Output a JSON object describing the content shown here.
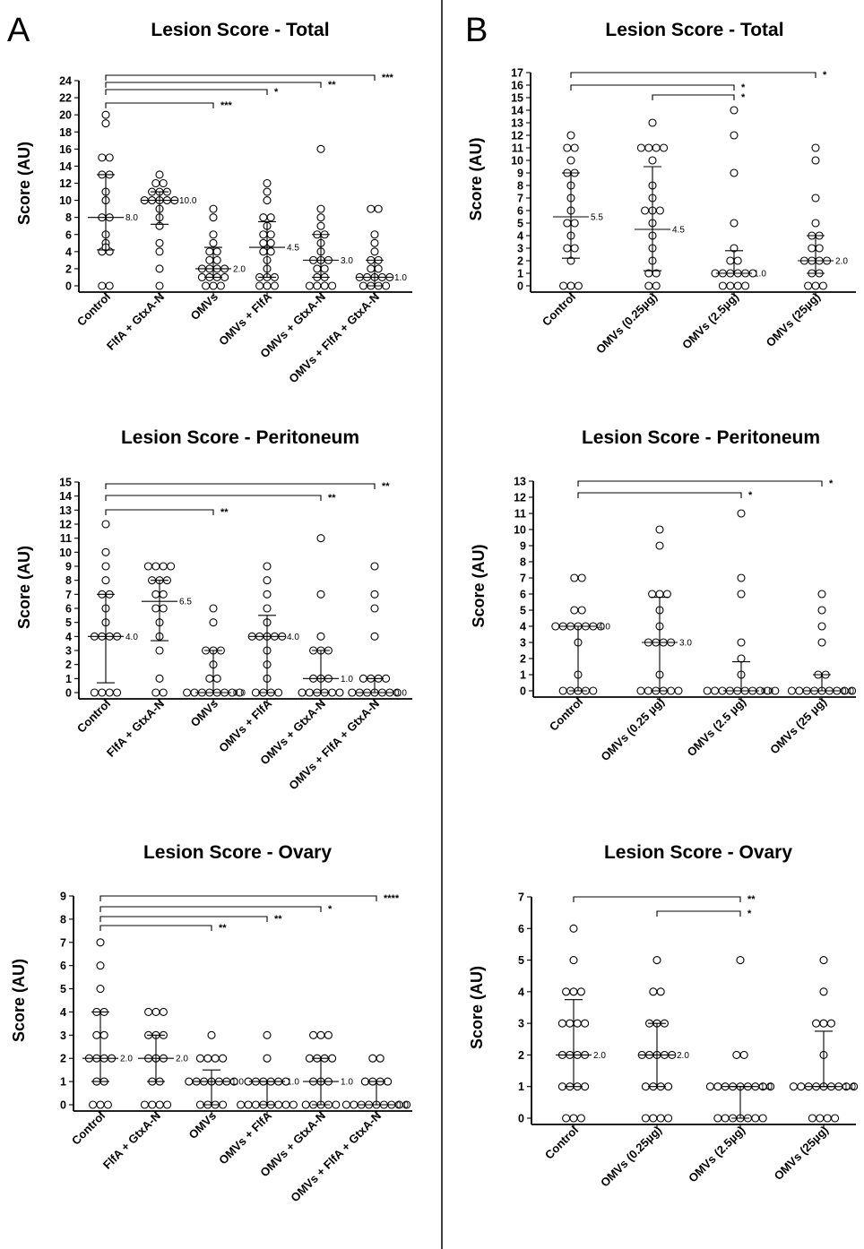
{
  "panels": [
    {
      "letter": "A",
      "divider": "panel-divider"
    },
    {
      "letter": "B"
    }
  ],
  "chart_data": [
    {
      "panel": "A",
      "type": "scatter",
      "title": "Lesion Score - Total",
      "ylabel": "Score (AU)",
      "ylim": [
        0,
        24
      ],
      "yticks": [
        0,
        2,
        4,
        6,
        8,
        10,
        12,
        14,
        16,
        18,
        20,
        22,
        24
      ],
      "categories": [
        "Control",
        "FlfA + GtxA-N",
        "OMVs",
        "OMVs + FlfA",
        "OMVs + GtxA-N",
        "OMVs + FlfA + GtxA-N"
      ],
      "groups": [
        {
          "values": [
            20,
            19,
            15,
            15,
            13,
            13,
            11,
            10,
            8,
            8,
            6,
            5,
            4.5,
            4,
            4,
            0,
            0
          ],
          "median": 8.0,
          "median_label": "8.0",
          "q1": 4.2,
          "q3": 13
        },
        {
          "values": [
            13,
            12,
            12,
            11,
            11,
            11,
            10,
            10,
            10,
            10,
            10,
            9,
            8,
            7,
            5,
            4,
            2,
            0
          ],
          "median": 10.0,
          "median_label": "10.0",
          "q1": 7.2,
          "q3": 11
        },
        {
          "values": [
            9,
            8,
            6,
            5,
            4,
            4,
            3,
            3,
            2,
            2,
            2,
            2,
            1,
            1,
            1,
            1,
            0,
            0,
            0
          ],
          "median": 2.0,
          "median_label": "2.0",
          "q1": 1,
          "q3": 4.5
        },
        {
          "values": [
            12,
            11,
            10,
            8,
            8,
            7,
            6,
            6,
            5,
            5,
            4,
            4,
            3,
            2,
            1,
            1,
            1,
            0,
            0,
            0
          ],
          "median": 4.5,
          "median_label": "4.5",
          "q1": 1,
          "q3": 7.5
        },
        {
          "values": [
            16,
            9,
            8,
            7,
            6,
            6,
            5,
            4,
            3,
            3,
            3,
            2,
            2,
            1,
            1,
            0,
            0,
            0,
            0
          ],
          "median": 3.0,
          "median_label": "3.0",
          "q1": 1,
          "q3": 6
        },
        {
          "values": [
            9,
            9,
            6,
            5,
            4,
            3,
            3,
            2,
            2,
            1,
            1,
            1,
            1,
            1,
            0,
            0,
            0,
            0
          ],
          "median": 1.0,
          "median_label": "1.0",
          "q1": 0,
          "q3": 3
        }
      ],
      "comparisons": [
        {
          "from": 0,
          "to": 2,
          "label": "***"
        },
        {
          "from": 0,
          "to": 3,
          "label": "*"
        },
        {
          "from": 0,
          "to": 4,
          "label": "**"
        },
        {
          "from": 0,
          "to": 5,
          "label": "***"
        }
      ]
    },
    {
      "panel": "A",
      "type": "scatter",
      "title": "Lesion Score - Peritoneum",
      "ylabel": "Score (AU)",
      "ylim": [
        0,
        15
      ],
      "yticks": [
        0,
        1,
        2,
        3,
        4,
        5,
        6,
        7,
        8,
        9,
        10,
        11,
        12,
        13,
        14,
        15
      ],
      "categories": [
        "Control",
        "FlfA + GtxA-N",
        "OMVs",
        "OMVs + FlfA",
        "OMVs + GtxA-N",
        "OMVs + FlfA + GtxA-N"
      ],
      "groups": [
        {
          "values": [
            12,
            10,
            9,
            8,
            7,
            7,
            6,
            5,
            4,
            4,
            4,
            4,
            0,
            0,
            0,
            0
          ],
          "median": 4.0,
          "median_label": "4.0",
          "q1": 0.7,
          "q3": 7
        },
        {
          "values": [
            9,
            9,
            9,
            9,
            8,
            8,
            8,
            7,
            7,
            6,
            6,
            5,
            4,
            3,
            1,
            0,
            0
          ],
          "median": 6.5,
          "median_label": "6.5",
          "q1": 3.7,
          "q3": 8
        },
        {
          "values": [
            6,
            5,
            3,
            3,
            3,
            2,
            1,
            1,
            0,
            0,
            0,
            0,
            0,
            0,
            0,
            0
          ],
          "median": 0.0,
          "median_label": "0.0",
          "q1": 0,
          "q3": 3
        },
        {
          "values": [
            9,
            8,
            7,
            6,
            5,
            4,
            4,
            4,
            4,
            4,
            3,
            2,
            1,
            0,
            0,
            0,
            0
          ],
          "median": 4.0,
          "median_label": "4.0",
          "q1": 0,
          "q3": 5.5
        },
        {
          "values": [
            11,
            7,
            4,
            3,
            3,
            3,
            1,
            1,
            1,
            0,
            0,
            0,
            0,
            0,
            0
          ],
          "median": 1.0,
          "median_label": "1.0",
          "q1": 0,
          "q3": 3
        },
        {
          "values": [
            9,
            7,
            6,
            4,
            1,
            1,
            1,
            1,
            0,
            0,
            0,
            0,
            0,
            0,
            0
          ],
          "median": 0.0,
          "median_label": "0.0",
          "q1": 0,
          "q3": 1
        }
      ],
      "comparisons": [
        {
          "from": 0,
          "to": 2,
          "label": "**"
        },
        {
          "from": 0,
          "to": 4,
          "label": "**"
        },
        {
          "from": 0,
          "to": 5,
          "label": "**"
        }
      ]
    },
    {
      "panel": "A",
      "type": "scatter",
      "title": "Lesion Score - Ovary",
      "ylabel": "Score (AU)",
      "ylim": [
        0,
        9
      ],
      "yticks": [
        0,
        1,
        2,
        3,
        4,
        5,
        6,
        7,
        8,
        9
      ],
      "categories": [
        "Control",
        "FlfA + GtxA-N",
        "OMVs",
        "OMVs + FlfA",
        "OMVs + GtxA-N",
        "OMVs + FlfA + GtxA-N"
      ],
      "groups": [
        {
          "values": [
            7,
            6,
            5,
            4,
            4,
            3,
            3,
            2,
            2,
            2,
            2,
            1,
            1,
            0,
            0,
            0
          ],
          "median": 2.0,
          "median_label": "2.0",
          "q1": 1,
          "q3": 4
        },
        {
          "values": [
            4,
            4,
            4,
            3,
            3,
            3,
            2,
            2,
            2,
            1,
            1,
            0,
            0,
            0,
            0
          ],
          "median": 2.0,
          "median_label": "2.0",
          "q1": 1,
          "q3": 3
        },
        {
          "values": [
            3,
            2,
            2,
            2,
            2,
            1,
            1,
            1,
            1,
            1,
            1,
            1,
            0,
            0,
            0,
            0
          ],
          "median": 1.0,
          "median_label": "1.0",
          "q1": 0,
          "q3": 1.5
        },
        {
          "values": [
            3,
            2,
            1,
            1,
            1,
            1,
            1,
            1,
            0,
            0,
            0,
            0,
            0,
            0,
            0,
            0
          ],
          "median": 1.0,
          "median_label": "1.0",
          "q1": 0,
          "q3": 1
        },
        {
          "values": [
            3,
            3,
            3,
            2,
            2,
            2,
            2,
            1,
            1,
            1,
            0,
            0,
            0,
            0,
            0
          ],
          "median": 1.0,
          "median_label": "1.0",
          "q1": 0,
          "q3": 2
        },
        {
          "values": [
            2,
            2,
            1,
            1,
            1,
            1,
            0,
            0,
            0,
            0,
            0,
            0,
            0,
            0,
            0
          ],
          "median": 0.0,
          "median_label": "0.0",
          "q1": 0,
          "q3": 1
        }
      ],
      "comparisons": [
        {
          "from": 0,
          "to": 2,
          "label": "**"
        },
        {
          "from": 0,
          "to": 3,
          "label": "**"
        },
        {
          "from": 0,
          "to": 4,
          "label": "*"
        },
        {
          "from": 0,
          "to": 5,
          "label": "****"
        }
      ]
    },
    {
      "panel": "B",
      "type": "scatter",
      "title": "Lesion Score - Total",
      "ylabel": "Score (AU)",
      "ylim": [
        0,
        17
      ],
      "yticks": [
        0,
        1,
        2,
        3,
        4,
        5,
        6,
        7,
        8,
        9,
        10,
        11,
        12,
        13,
        14,
        15,
        16,
        17
      ],
      "categories": [
        "Control",
        "OMVs (0.25µg)",
        "OMVs (2.5µg)",
        "OMVs (25µg)"
      ],
      "groups": [
        {
          "values": [
            12,
            11,
            11,
            10,
            9,
            9,
            8,
            7,
            6,
            5,
            5,
            4,
            3,
            3,
            2,
            0,
            0,
            0
          ],
          "median": 5.5,
          "median_label": "5.5",
          "q1": 2.2,
          "q3": 9
        },
        {
          "values": [
            13,
            11,
            11,
            11,
            11,
            10,
            8,
            7,
            6,
            6,
            6,
            5,
            4,
            3,
            2,
            1,
            1,
            0,
            0
          ],
          "median": 4.5,
          "median_label": "4.5",
          "q1": 1.2,
          "q3": 9.5
        },
        {
          "values": [
            14,
            12,
            9,
            5,
            3,
            2,
            2,
            1,
            1,
            1,
            1,
            1,
            1,
            0,
            0,
            0,
            0
          ],
          "median": 1.0,
          "median_label": "1.0",
          "q1": 1,
          "q3": 2.8
        },
        {
          "values": [
            11,
            10,
            7,
            5,
            4,
            4,
            3,
            3,
            2,
            2,
            2,
            2,
            1,
            1,
            0,
            0,
            0
          ],
          "median": 2.0,
          "median_label": "2.0",
          "q1": 1,
          "q3": 4
        }
      ],
      "comparisons": [
        {
          "from": 1,
          "to": 2,
          "label": "*"
        },
        {
          "from": 0,
          "to": 2,
          "label": "*"
        },
        {
          "from": 0,
          "to": 3,
          "label": "*"
        }
      ]
    },
    {
      "panel": "B",
      "type": "scatter",
      "title": "Lesion Score - Peritoneum",
      "ylabel": "Score (AU)",
      "ylim": [
        0,
        13
      ],
      "yticks": [
        0,
        1,
        2,
        3,
        4,
        5,
        6,
        7,
        8,
        9,
        10,
        11,
        12,
        13
      ],
      "categories": [
        "Control",
        "OMVs (0.25 µg)",
        "OMVs (2.5 µg)",
        "OMVs (25 µg)"
      ],
      "groups": [
        {
          "values": [
            7,
            7,
            5,
            5,
            4,
            4,
            4,
            4,
            4,
            4,
            4,
            3,
            1,
            0,
            0,
            0,
            0,
            0
          ],
          "median": 4.0,
          "median_label": "4.0",
          "q1": 0,
          "q3": 4
        },
        {
          "values": [
            10,
            9,
            6,
            6,
            6,
            5,
            4,
            3,
            3,
            3,
            3,
            1,
            0,
            0,
            0,
            0,
            0,
            0
          ],
          "median": 3.0,
          "median_label": "3.0",
          "q1": 0,
          "q3": 5.8
        },
        {
          "values": [
            11,
            7,
            6,
            3,
            2,
            1,
            0,
            0,
            0,
            0,
            0,
            0,
            0,
            0,
            0,
            0
          ],
          "median": 0.0,
          "median_label": "0.0",
          "q1": 0,
          "q3": 1.8
        },
        {
          "values": [
            6,
            5,
            4,
            3,
            1,
            1,
            0,
            0,
            0,
            0,
            0,
            0,
            0,
            0,
            0
          ],
          "median": 0.0,
          "median_label": "0.0",
          "q1": 0,
          "q3": 1
        }
      ],
      "comparisons": [
        {
          "from": 0,
          "to": 2,
          "label": "*"
        },
        {
          "from": 0,
          "to": 3,
          "label": "*"
        }
      ]
    },
    {
      "panel": "B",
      "type": "scatter",
      "title": "Lesion Score - Ovary",
      "ylabel": "Score (AU)",
      "ylim": [
        0,
        7
      ],
      "yticks": [
        0,
        1,
        2,
        3,
        4,
        5,
        6,
        7
      ],
      "categories": [
        "Control",
        "OMVs (0.25µg)",
        "OMVs (2.5µg)",
        "OMVs (25µg)"
      ],
      "groups": [
        {
          "values": [
            6,
            5,
            4,
            4,
            4,
            3,
            3,
            3,
            3,
            2,
            2,
            2,
            2,
            1,
            1,
            1,
            1,
            0,
            0,
            0
          ],
          "median": 2.0,
          "median_label": "2.0",
          "q1": 1,
          "q3": 3.75
        },
        {
          "values": [
            5,
            4,
            4,
            3,
            3,
            3,
            2,
            2,
            2,
            2,
            2,
            1,
            1,
            1,
            1,
            0,
            0,
            0,
            0
          ],
          "median": 2.0,
          "median_label": "2.0",
          "q1": 1,
          "q3": 3
        },
        {
          "values": [
            5,
            2,
            2,
            1,
            1,
            1,
            1,
            1,
            1,
            1,
            1,
            1,
            0,
            0,
            0,
            0,
            0,
            0,
            0
          ],
          "median": 1.0,
          "median_label": "1.0",
          "q1": 0,
          "q3": 1
        },
        {
          "values": [
            5,
            4,
            3,
            3,
            3,
            2,
            1,
            1,
            1,
            1,
            1,
            1,
            1,
            1,
            1,
            0,
            0,
            0,
            0
          ],
          "median": 1.0,
          "median_label": "1.0",
          "q1": 1,
          "q3": 2.75
        }
      ],
      "comparisons": [
        {
          "from": 1,
          "to": 2,
          "label": "*"
        },
        {
          "from": 0,
          "to": 2,
          "label": "**"
        }
      ]
    }
  ]
}
